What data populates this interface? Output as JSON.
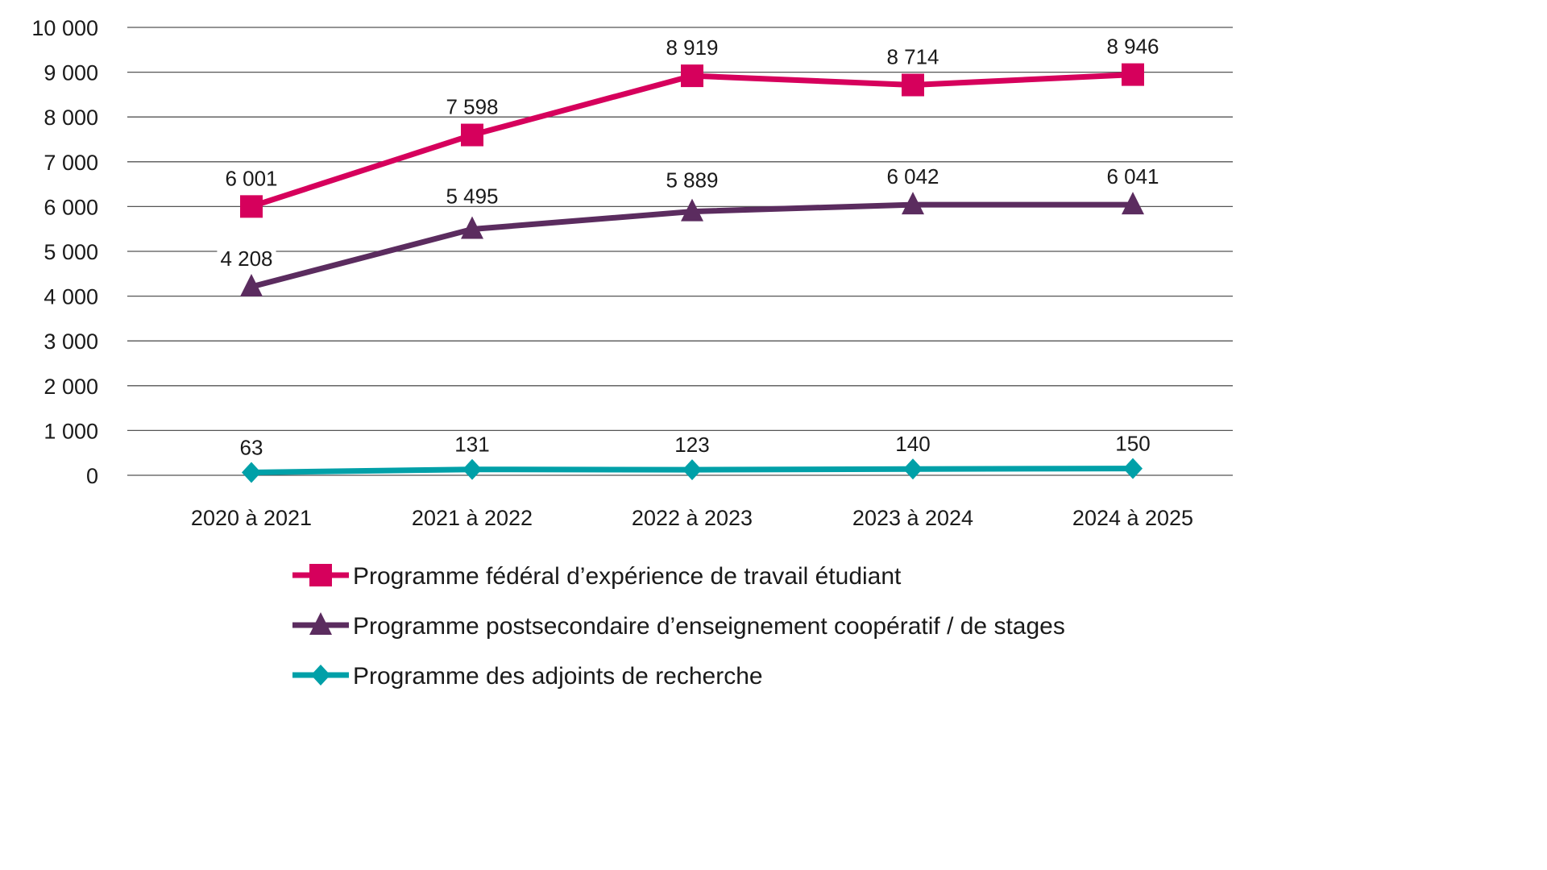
{
  "chart_data": {
    "type": "line",
    "title": "",
    "xlabel": "",
    "ylabel": "",
    "categories": [
      "2020 à 2021",
      "2021 à 2022",
      "2022 à 2023",
      "2023 à 2024",
      "2024 à 2025"
    ],
    "ylim": [
      0,
      10000
    ],
    "yticks": [
      0,
      1000,
      2000,
      3000,
      4000,
      5000,
      6000,
      7000,
      8000,
      9000,
      10000
    ],
    "ytick_labels": [
      "0",
      "1 000",
      "2 000",
      "3 000",
      "4 000",
      "5 000",
      "6 000",
      "7 000",
      "8 000",
      "9 000",
      "10 000"
    ],
    "grid": "horizontal",
    "legend_position": "bottom",
    "series": [
      {
        "name": "Programme fédéral d’expérience de travail étudiant",
        "marker": "square",
        "color": "#d6005c",
        "values": [
          6001,
          7598,
          8919,
          8714,
          8946
        ],
        "labels": [
          "6 001",
          "7 598",
          "8 919",
          "8 714",
          "8 946"
        ]
      },
      {
        "name": "Programme postsecondaire d’enseignement coopératif / de stages",
        "marker": "triangle",
        "color": "#5b2c5f",
        "values": [
          4208,
          5495,
          5889,
          6042,
          6041
        ],
        "labels": [
          "4 208",
          "5 495",
          "5 889",
          "6 042",
          "6 041"
        ]
      },
      {
        "name": "Programme des adjoints de recherche",
        "marker": "diamond",
        "color": "#00a0a8",
        "values": [
          63,
          131,
          123,
          140,
          150
        ],
        "labels": [
          "63",
          "131",
          "123",
          "140",
          "150"
        ]
      }
    ]
  }
}
